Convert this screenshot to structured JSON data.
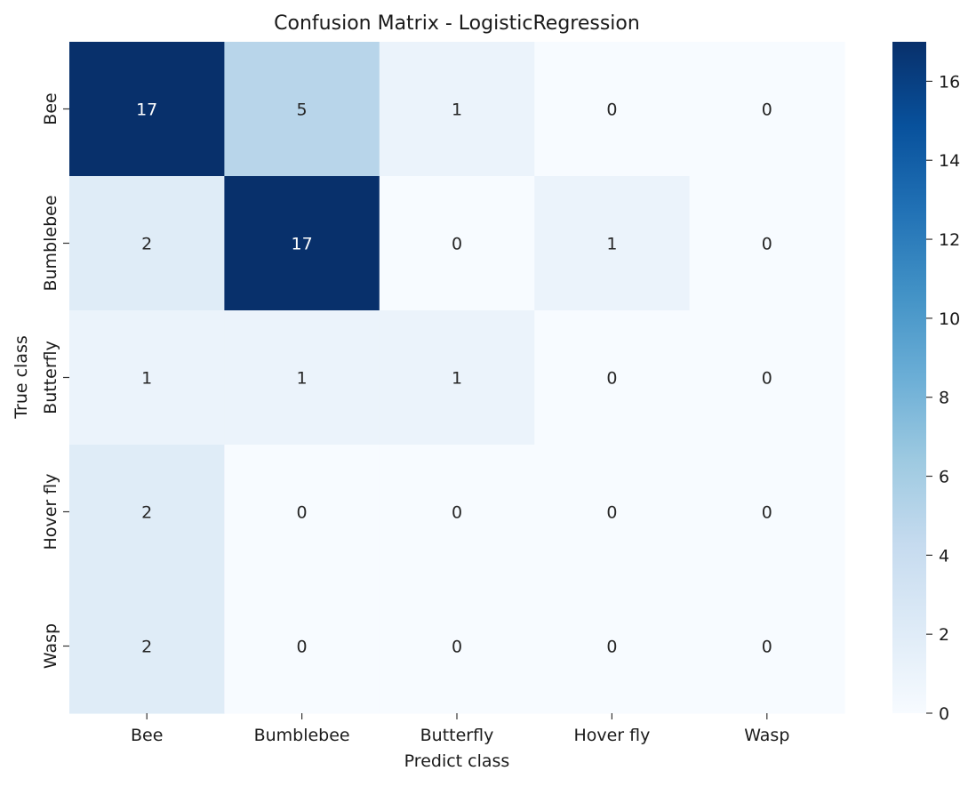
{
  "chart_data": {
    "type": "heatmap",
    "title": "Confusion Matrix - LogisticRegression",
    "xlabel": "Predict class",
    "ylabel": "True class",
    "x_categories": [
      "Bee",
      "Bumblebee",
      "Butterfly",
      "Hover fly",
      "Wasp"
    ],
    "y_categories": [
      "Bee",
      "Bumblebee",
      "Butterfly",
      "Hover fly",
      "Wasp"
    ],
    "values": [
      [
        17,
        5,
        1,
        0,
        0
      ],
      [
        2,
        17,
        0,
        1,
        0
      ],
      [
        1,
        1,
        1,
        0,
        0
      ],
      [
        2,
        0,
        0,
        0,
        0
      ],
      [
        2,
        0,
        0,
        0,
        0
      ]
    ],
    "colormap": "Blues",
    "color_range": [
      0,
      17
    ],
    "colorbar_ticks": [
      0,
      2,
      4,
      6,
      8,
      10,
      12,
      14,
      16
    ],
    "annotations": true,
    "grid": false,
    "legend": "colorbar-right"
  }
}
